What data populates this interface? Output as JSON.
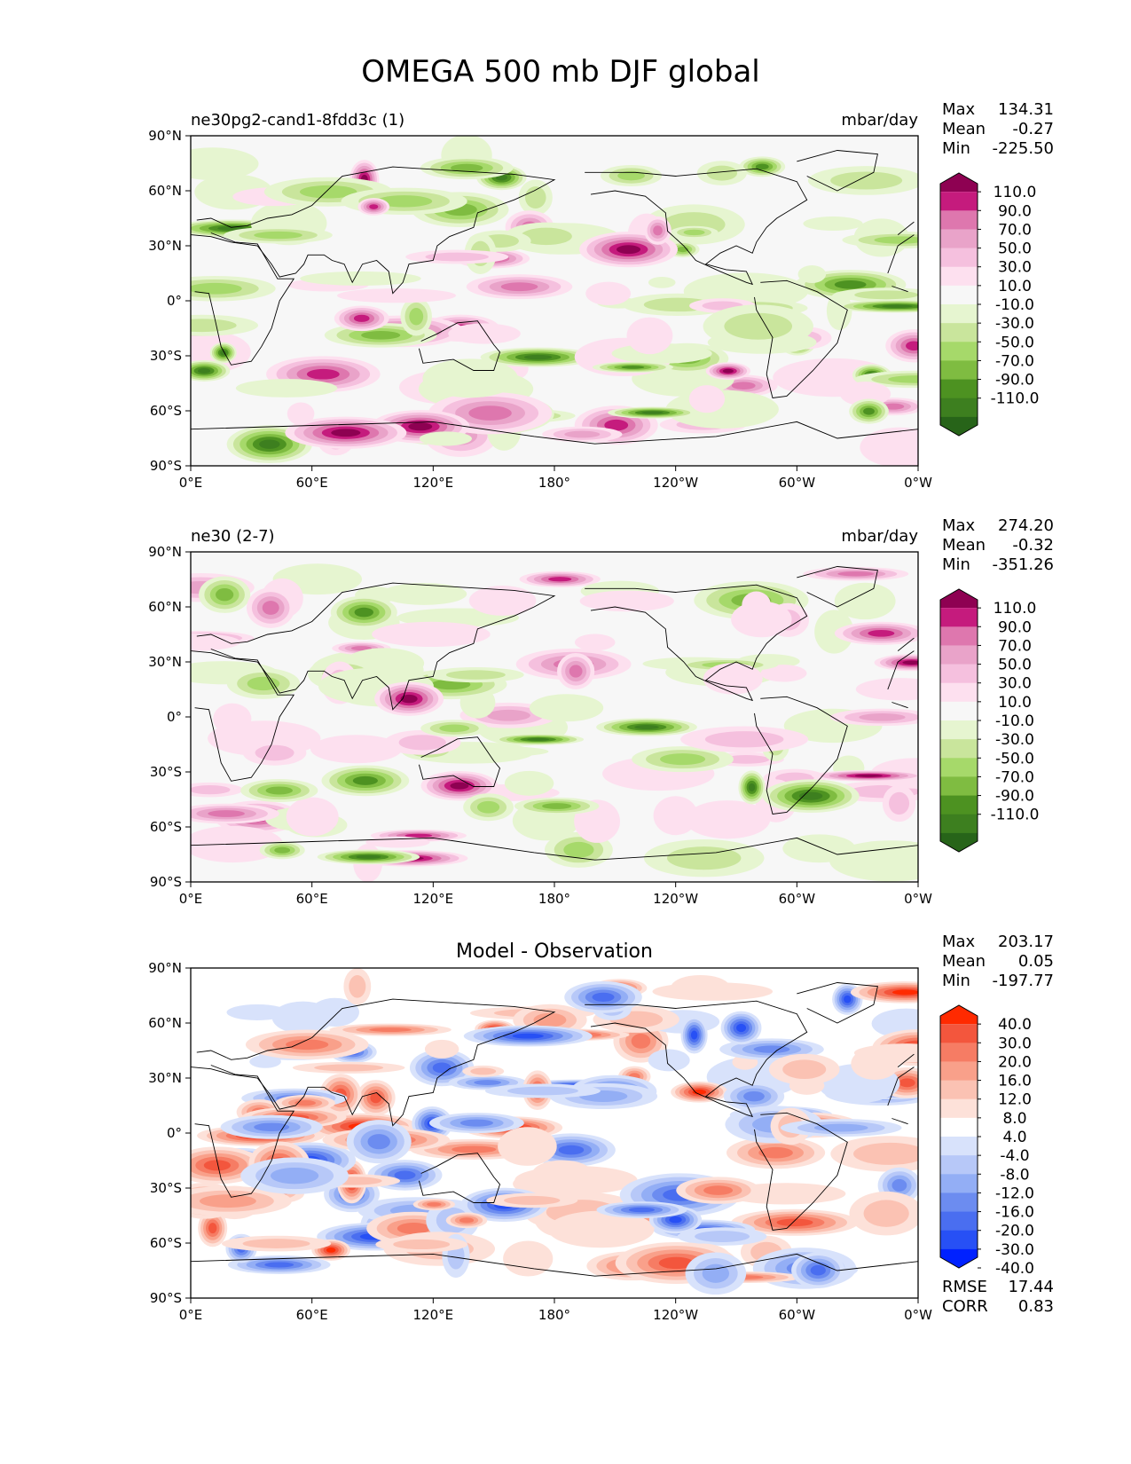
{
  "title": "OMEGA 500 mb DJF global",
  "x_ticks": [
    "0°E",
    "60°E",
    "120°E",
    "180°",
    "120°W",
    "60°W",
    "0°W"
  ],
  "y_ticks": [
    "90°N",
    "60°N",
    "30°N",
    "0°",
    "30°S",
    "60°S",
    "90°S"
  ],
  "colors": {
    "pink_green": [
      "#276419",
      "#3d7f1f",
      "#4d9221",
      "#7fbc41",
      "#a6d96a",
      "#c9e59c",
      "#e6f5d0",
      "#f7f7f7",
      "#fde0ef",
      "#f5c0de",
      "#e9a3c9",
      "#de77ae",
      "#c51b7d",
      "#8e0152"
    ],
    "red_blue": [
      "#0021ff",
      "#2750f5",
      "#4a6ef0",
      "#6c8cf0",
      "#93aef5",
      "#b7c8f8",
      "#d8e2fb",
      "#ffffff",
      "#fde1d9",
      "#fbc2b3",
      "#f9a08a",
      "#f67c64",
      "#f3563d",
      "#ff2a00"
    ]
  },
  "chart_data": [
    {
      "type": "heatmap",
      "subtitle_left": "ne30pg2-cand1-8fdd3c (1)",
      "subtitle_center": "",
      "units": "mbar/day",
      "stats": {
        "max_label": "Max",
        "max": "134.31",
        "mean_label": "Mean",
        "mean": "-0.27",
        "min_label": "Min",
        "min": "-225.50"
      },
      "colorbar_levels": [
        "110.0",
        "90.0",
        "70.0",
        "50.0",
        "30.0",
        "10.0",
        "-10.0",
        "-30.0",
        "-50.0",
        "-70.0",
        "-90.0",
        "-110.0"
      ],
      "x_range": [
        0,
        360
      ],
      "y_range": [
        -90,
        90
      ],
      "palette": "pink_green",
      "seed": 7
    },
    {
      "type": "heatmap",
      "subtitle_left": "ne30 (2-7)",
      "subtitle_center": "",
      "units": "mbar/day",
      "stats": {
        "max_label": "Max",
        "max": "274.20",
        "mean_label": "Mean",
        "mean": "-0.32",
        "min_label": "Min",
        "min": "-351.26"
      },
      "colorbar_levels": [
        "110.0",
        "90.0",
        "70.0",
        "50.0",
        "30.0",
        "10.0",
        "-10.0",
        "-30.0",
        "-50.0",
        "-70.0",
        "-90.0",
        "-110.0"
      ],
      "x_range": [
        0,
        360
      ],
      "y_range": [
        -90,
        90
      ],
      "palette": "pink_green",
      "seed": 19
    },
    {
      "type": "heatmap",
      "subtitle_left": "",
      "subtitle_center": "Model - Observation",
      "units": "",
      "stats": {
        "max_label": "Max",
        "max": "203.17",
        "mean_label": "Mean",
        "mean": "0.05",
        "min_label": "Min",
        "min": "-197.77"
      },
      "colorbar_levels": [
        "40.0",
        "30.0",
        "20.0",
        "16.0",
        "12.0",
        "8.0",
        "4.0",
        "-4.0",
        "-8.0",
        "-12.0",
        "-16.0",
        "-20.0",
        "-30.0",
        "-40.0"
      ],
      "metrics": {
        "rmse_label": "RMSE",
        "rmse": "17.44",
        "corr_label": "CORR",
        "corr": "0.83"
      },
      "x_range": [
        0,
        360
      ],
      "y_range": [
        -90,
        90
      ],
      "palette": "red_blue",
      "seed": 43
    }
  ]
}
